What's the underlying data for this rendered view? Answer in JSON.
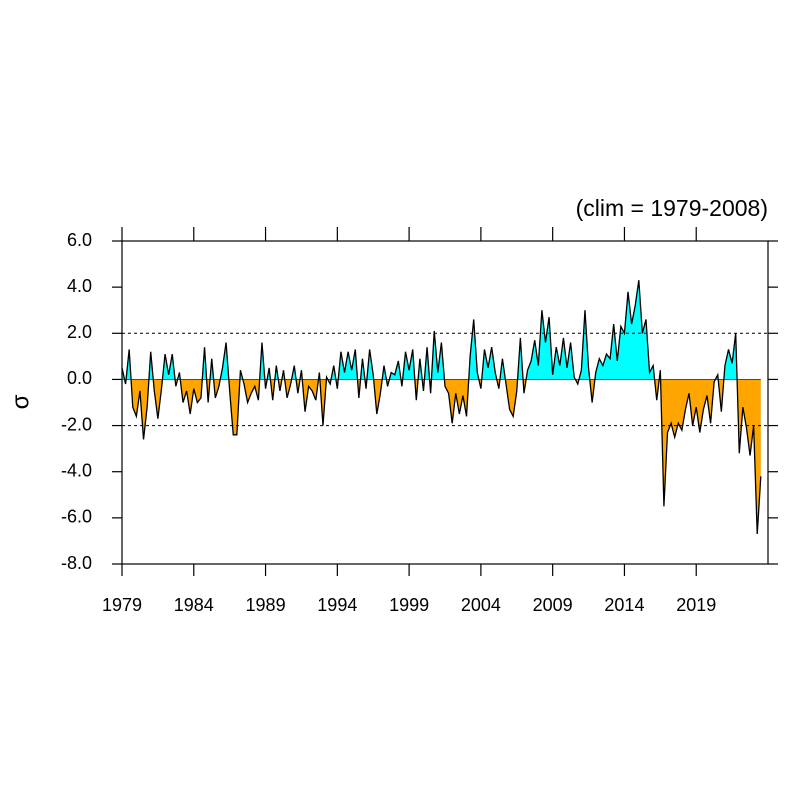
{
  "chart_data": {
    "type": "area",
    "title": "(clim = 1979-2008)",
    "y_label": "σ",
    "above_color": "#00ffff",
    "below_color": "#ffa500",
    "line_color": "#000000",
    "hlines": [
      2,
      -2
    ],
    "xlim": [
      1979,
      2024
    ],
    "xticks": [
      1979,
      1984,
      1989,
      1994,
      1999,
      2004,
      2009,
      2014,
      2019
    ],
    "ylim": [
      -8,
      6
    ],
    "yticks": [
      {
        "value": 6,
        "label": "6.0"
      },
      {
        "value": 4,
        "label": "4.0"
      },
      {
        "value": 2,
        "label": "2.0"
      },
      {
        "value": 0,
        "label": "0.0"
      },
      {
        "value": -2,
        "label": "-2.0"
      },
      {
        "value": -4,
        "label": "-4.0"
      },
      {
        "value": -6,
        "label": "-6.0"
      },
      {
        "value": -8,
        "label": "-8.0"
      }
    ],
    "x": [
      1979,
      1979.25,
      1979.5,
      1979.75,
      1980,
      1980.25,
      1980.5,
      1980.75,
      1981,
      1981.25,
      1981.5,
      1981.75,
      1982,
      1982.25,
      1982.5,
      1982.75,
      1983,
      1983.25,
      1983.5,
      1983.75,
      1984,
      1984.25,
      1984.5,
      1984.75,
      1985,
      1985.25,
      1985.5,
      1985.75,
      1986,
      1986.25,
      1986.5,
      1986.75,
      1987,
      1987.25,
      1987.5,
      1987.75,
      1988,
      1988.25,
      1988.5,
      1988.75,
      1989,
      1989.25,
      1989.5,
      1989.75,
      1990,
      1990.25,
      1990.5,
      1990.75,
      1991,
      1991.25,
      1991.5,
      1991.75,
      1992,
      1992.25,
      1992.5,
      1992.75,
      1993,
      1993.25,
      1993.5,
      1993.75,
      1994,
      1994.25,
      1994.5,
      1994.75,
      1995,
      1995.25,
      1995.5,
      1995.75,
      1996,
      1996.25,
      1996.5,
      1996.75,
      1997,
      1997.25,
      1997.5,
      1997.75,
      1998,
      1998.25,
      1998.5,
      1998.75,
      1999,
      1999.25,
      1999.5,
      1999.75,
      2000,
      2000.25,
      2000.5,
      2000.75,
      2001,
      2001.25,
      2001.5,
      2001.75,
      2002,
      2002.25,
      2002.5,
      2002.75,
      2003,
      2003.25,
      2003.5,
      2003.75,
      2004,
      2004.25,
      2004.5,
      2004.75,
      2005,
      2005.25,
      2005.5,
      2005.75,
      2006,
      2006.25,
      2006.5,
      2006.75,
      2007,
      2007.25,
      2007.5,
      2007.75,
      2008,
      2008.25,
      2008.5,
      2008.75,
      2009,
      2009.25,
      2009.5,
      2009.75,
      2010,
      2010.25,
      2010.5,
      2010.75,
      2011,
      2011.25,
      2011.5,
      2011.75,
      2012,
      2012.25,
      2012.5,
      2012.75,
      2013,
      2013.25,
      2013.5,
      2013.75,
      2014,
      2014.25,
      2014.5,
      2014.75,
      2015,
      2015.25,
      2015.5,
      2015.75,
      2016,
      2016.25,
      2016.5,
      2016.75,
      2017,
      2017.25,
      2017.5,
      2017.75,
      2018,
      2018.25,
      2018.5,
      2018.75,
      2019,
      2019.25,
      2019.5,
      2019.75,
      2020,
      2020.25,
      2020.5,
      2020.75,
      2021,
      2021.25,
      2021.5,
      2021.75,
      2022,
      2022.25,
      2022.5,
      2022.75,
      2023,
      2023.25,
      2023.5
    ],
    "values": [
      0.5,
      -0.2,
      1.3,
      -1.2,
      -1.6,
      -0.5,
      -2.6,
      -1.2,
      1.2,
      -0.5,
      -1.7,
      -0.4,
      1.1,
      0.2,
      1.1,
      -0.3,
      0.3,
      -1.0,
      -0.5,
      -1.5,
      -0.4,
      -1.0,
      -0.8,
      1.4,
      -1.0,
      0.9,
      -0.8,
      -0.3,
      0.5,
      1.6,
      -0.5,
      -2.4,
      -2.4,
      0.4,
      -0.2,
      -1.0,
      -0.6,
      -0.3,
      -0.9,
      1.6,
      -0.4,
      0.5,
      -0.9,
      0.6,
      -0.5,
      0.4,
      -0.8,
      -0.2,
      0.6,
      -0.6,
      0.4,
      -1.4,
      -0.3,
      -0.5,
      -0.9,
      0.3,
      -2.0,
      0.1,
      -0.2,
      0.6,
      -0.4,
      1.2,
      0.3,
      1.2,
      0.4,
      1.3,
      -0.8,
      0.9,
      -0.4,
      1.3,
      0.2,
      -1.5,
      -0.6,
      0.6,
      -0.3,
      0.3,
      0.2,
      0.8,
      -0.3,
      1.2,
      0.4,
      1.3,
      -0.9,
      0.9,
      -0.5,
      1.4,
      -0.6,
      2.1,
      0.3,
      1.6,
      -0.3,
      -0.6,
      -1.9,
      -0.6,
      -1.5,
      -0.7,
      -1.6,
      1.0,
      2.6,
      0.3,
      -0.4,
      1.3,
      0.5,
      1.4,
      0.3,
      -0.4,
      0.9,
      -0.2,
      -1.3,
      -1.6,
      -0.5,
      1.8,
      -0.6,
      0.4,
      0.8,
      1.7,
      0.6,
      3.0,
      1.6,
      2.7,
      0.2,
      1.4,
      0.6,
      1.8,
      0.5,
      1.6,
      0.1,
      -0.2,
      0.4,
      3.0,
      0.5,
      -1.0,
      0.3,
      0.9,
      0.6,
      1.1,
      0.9,
      2.4,
      0.8,
      2.3,
      2.0,
      3.8,
      2.4,
      3.2,
      4.3,
      2.0,
      2.6,
      0.3,
      0.6,
      -0.9,
      0.4,
      -5.5,
      -2.3,
      -1.9,
      -2.5,
      -1.9,
      -2.2,
      -1.3,
      -0.6,
      -2.0,
      -1.2,
      -2.3,
      -1.3,
      -0.7,
      -1.9,
      -0.1,
      0.2,
      -1.4,
      0.6,
      1.3,
      0.7,
      2.0,
      -3.2,
      -1.2,
      -2.1,
      -3.3,
      -2.0,
      -6.7,
      -4.2
    ]
  }
}
